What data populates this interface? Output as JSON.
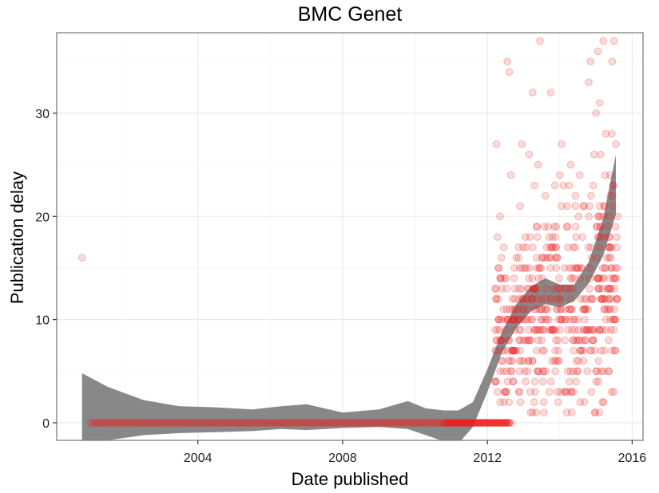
{
  "chart_data": {
    "type": "scatter",
    "title": "BMC Genet",
    "xlabel": "Date published",
    "ylabel": "Publication delay",
    "xlim": [
      2000.1,
      2016.3
    ],
    "ylim": [
      -1.7,
      37.8
    ],
    "x_ticks": [
      2004,
      2008,
      2012,
      2016
    ],
    "x_tick_labels": [
      "2004",
      "2008",
      "2012",
      "2016"
    ],
    "y_ticks": [
      0,
      10,
      20,
      30
    ],
    "y_tick_labels": [
      "0",
      "10",
      "20",
      "30"
    ],
    "grid": true,
    "legend": "none",
    "colors": {
      "points": "#ee2222",
      "band": "#888888",
      "border": "#7f7f7f",
      "grid_major": "#ebebeb",
      "grid_minor": "#f6f6f6"
    },
    "points": [
      [
        2000.8,
        16
      ],
      [
        2012.25,
        27
      ],
      [
        2012.3,
        15
      ],
      [
        2012.35,
        20
      ],
      [
        2012.4,
        13
      ],
      [
        2012.45,
        17
      ],
      [
        2012.55,
        35
      ],
      [
        2012.6,
        34
      ],
      [
        2012.65,
        24
      ],
      [
        2012.7,
        10
      ],
      [
        2012.75,
        11
      ],
      [
        2012.8,
        16
      ],
      [
        2012.9,
        21
      ],
      [
        2012.95,
        27
      ],
      [
        2013.05,
        18
      ],
      [
        2013.15,
        26
      ],
      [
        2013.25,
        32
      ],
      [
        2013.3,
        23
      ],
      [
        2013.4,
        25
      ],
      [
        2013.45,
        37
      ],
      [
        2013.6,
        22
      ],
      [
        2013.7,
        18
      ],
      [
        2013.75,
        32
      ],
      [
        2013.85,
        19
      ],
      [
        2014.0,
        24
      ],
      [
        2014.05,
        27
      ],
      [
        2014.1,
        23
      ],
      [
        2014.2,
        21
      ],
      [
        2014.3,
        25
      ],
      [
        2014.45,
        18
      ],
      [
        2014.55,
        24
      ],
      [
        2014.65,
        21
      ],
      [
        2014.8,
        33
      ],
      [
        2014.85,
        35
      ],
      [
        2014.95,
        26
      ],
      [
        2015.0,
        30
      ],
      [
        2015.05,
        36
      ],
      [
        2015.1,
        31
      ],
      [
        2015.2,
        37
      ],
      [
        2015.25,
        24
      ],
      [
        2015.35,
        17
      ],
      [
        2015.45,
        35
      ],
      [
        2015.5,
        37
      ],
      [
        2015.55,
        27
      ]
    ],
    "smooth_fit": {
      "x": [
        2000.8,
        2001.5,
        2002.5,
        2003.5,
        2004.5,
        2005.5,
        2006.3,
        2007.0,
        2008.0,
        2009.0,
        2009.8,
        2010.3,
        2010.8,
        2011.2,
        2011.6,
        2012.0,
        2012.4,
        2012.8,
        2013.2,
        2013.6,
        2014.0,
        2014.4,
        2014.8,
        2015.2,
        2015.55
      ],
      "mean": [
        1.5,
        1.0,
        0.5,
        0.2,
        0.1,
        0.1,
        0.2,
        0.3,
        0.1,
        0.2,
        0.5,
        0.1,
        -0.3,
        -0.4,
        0.8,
        4.0,
        7.5,
        10.0,
        11.5,
        12.2,
        11.8,
        12.5,
        14.5,
        18.0,
        23.0
      ],
      "ci_low": [
        -1.7,
        -1.7,
        -1.2,
        -1.0,
        -0.9,
        -0.8,
        -0.6,
        -0.7,
        -0.5,
        -0.4,
        -0.6,
        -1.2,
        -1.8,
        -2.0,
        -0.4,
        3.0,
        6.8,
        9.2,
        10.8,
        11.5,
        11.2,
        11.8,
        13.5,
        16.2,
        20.2
      ],
      "ci_high": [
        4.8,
        3.5,
        2.2,
        1.6,
        1.5,
        1.3,
        1.6,
        1.8,
        1.0,
        1.3,
        2.1,
        1.4,
        1.2,
        1.2,
        2.0,
        5.2,
        8.8,
        11.5,
        13.2,
        14.0,
        13.4,
        13.4,
        15.6,
        19.8,
        26.0
      ]
    }
  }
}
